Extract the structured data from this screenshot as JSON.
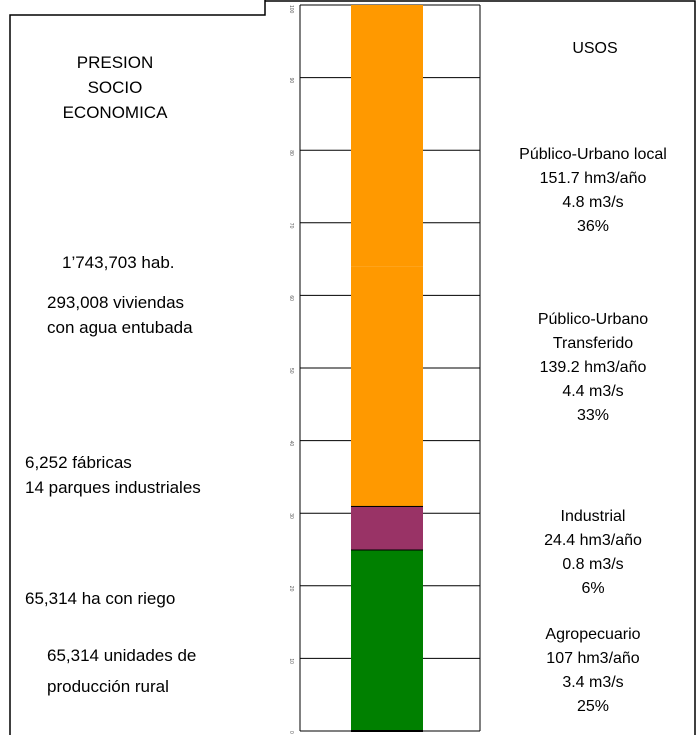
{
  "chart_data": {
    "type": "bar",
    "left_title": "PRESION SOCIO ECONOMICA",
    "right_title": "USOS",
    "annotations": [
      [
        "1’743,703 hab."
      ],
      [
        "293,008 viviendas",
        "con agua entubada"
      ],
      [
        "6,252 fábricas",
        "14 parques industriales"
      ],
      [
        "65,314 ha con riego"
      ],
      [
        "65,314 unidades de",
        "producción rural"
      ]
    ],
    "series": [
      {
        "name": "Agropecuario",
        "color": "#008000",
        "values": [
          25
        ],
        "value_labels": [
          "25%"
        ],
        "volume": "107 hm3/año",
        "flow": "3.4 m3/s"
      },
      {
        "name": "Industrial",
        "color": "#993366",
        "values": [
          6
        ],
        "value_labels": [
          "6%"
        ],
        "volume": "24.4 hm3/año",
        "flow": "0.8 m3/s"
      },
      {
        "name": "Público-Urbano Transferido",
        "color": "#ff9900",
        "values": [
          33
        ],
        "value_labels": [
          "33%"
        ],
        "volume": "139.2 hm3/año",
        "flow": "4.4 m3/s"
      },
      {
        "name": "Público-Urbano local",
        "color": "#ff9900",
        "values": [
          36
        ],
        "value_labels": [
          "36%"
        ],
        "volume": "151.7 hm3/año",
        "flow": "4.8 m3/s"
      }
    ],
    "ylim": [
      0,
      100
    ],
    "yticks": [
      0,
      10,
      20,
      30,
      40,
      50,
      60,
      70,
      80,
      90,
      100
    ],
    "grid": true
  }
}
